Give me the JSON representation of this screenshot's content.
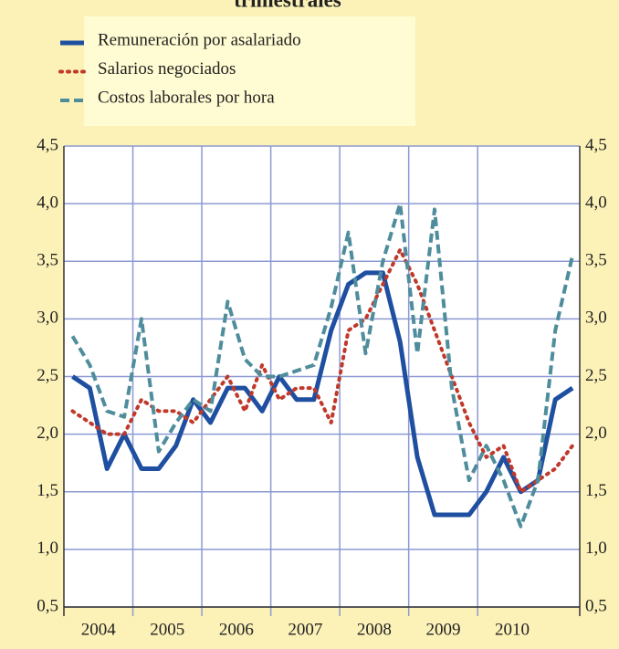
{
  "chart_data": {
    "type": "line",
    "title": "trimestrales",
    "x": [
      2004.125,
      2004.375,
      2004.625,
      2004.875,
      2005.125,
      2005.375,
      2005.625,
      2005.875,
      2006.125,
      2006.375,
      2006.625,
      2006.875,
      2007.125,
      2007.375,
      2007.625,
      2007.875,
      2008.125,
      2008.375,
      2008.625,
      2008.875,
      2009.125,
      2009.375,
      2009.625,
      2009.875,
      2010.125,
      2010.375,
      2010.625,
      2010.875,
      2011.125,
      2011.375
    ],
    "series": [
      {
        "name": "Remuneración por asalariado",
        "color": "#1f4fa0",
        "style": "solid",
        "values": [
          2.5,
          2.4,
          1.7,
          2.0,
          1.7,
          1.7,
          1.9,
          2.3,
          2.1,
          2.4,
          2.4,
          2.2,
          2.5,
          2.3,
          2.3,
          2.9,
          3.3,
          3.4,
          3.4,
          2.8,
          1.8,
          1.3,
          1.3,
          1.3,
          1.5,
          1.8,
          1.5,
          1.6,
          2.3,
          2.4
        ]
      },
      {
        "name": "Salarios negociados",
        "color": "#c0392b",
        "style": "dotted",
        "values": [
          2.2,
          2.1,
          2.0,
          2.0,
          2.3,
          2.2,
          2.2,
          2.1,
          2.3,
          2.5,
          2.2,
          2.6,
          2.3,
          2.4,
          2.4,
          2.1,
          2.9,
          3.0,
          3.3,
          3.6,
          3.3,
          2.9,
          2.5,
          2.1,
          1.8,
          1.9,
          1.5,
          1.6,
          1.7,
          1.9
        ]
      },
      {
        "name": "Costos laborales  por hora",
        "color": "#4f8d9c",
        "style": "dashed",
        "values": [
          2.85,
          2.6,
          2.2,
          2.15,
          3.0,
          1.85,
          2.1,
          2.3,
          2.2,
          3.15,
          2.65,
          2.5,
          2.5,
          2.55,
          2.6,
          3.1,
          3.75,
          2.7,
          3.5,
          4.0,
          2.7,
          3.95,
          2.4,
          1.6,
          1.9,
          1.6,
          1.2,
          1.6,
          2.9,
          3.55
        ]
      }
    ],
    "xlim": [
      2004,
      2011.48
    ],
    "xticks": [
      {
        "value": 2004.5,
        "label": "2004"
      },
      {
        "value": 2005.5,
        "label": "2005"
      },
      {
        "value": 2006.5,
        "label": "2006"
      },
      {
        "value": 2007.5,
        "label": "2007"
      },
      {
        "value": 2008.5,
        "label": "2008"
      },
      {
        "value": 2009.5,
        "label": "2009"
      },
      {
        "value": 2010.5,
        "label": "2010"
      }
    ],
    "xgrid": [
      2005,
      2006,
      2007,
      2008,
      2009,
      2010
    ],
    "ylim": [
      0.5,
      4.5
    ],
    "yticks": [
      {
        "value": 0.5,
        "label": "0,5"
      },
      {
        "value": 1.0,
        "label": "1,0"
      },
      {
        "value": 1.5,
        "label": "1,5"
      },
      {
        "value": 2.0,
        "label": "2,0"
      },
      {
        "value": 2.5,
        "label": "2,5"
      },
      {
        "value": 3.0,
        "label": "3,0"
      },
      {
        "value": 3.5,
        "label": "3,5"
      },
      {
        "value": 4.0,
        "label": "4,0"
      },
      {
        "value": 4.5,
        "label": "4,5"
      }
    ],
    "grid": true
  }
}
